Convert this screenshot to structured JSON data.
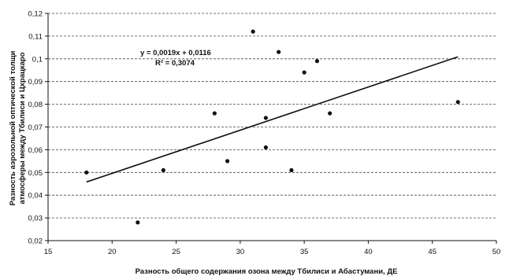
{
  "chart_data": {
    "type": "scatter",
    "xlabel": "Разность общего содержания озона между Тбилиси и Абастумани, ДЕ",
    "ylabel_lines": [
      "Разность аэрозольной оптической толщи",
      "атмосферы между Тбилиси и Цхрацкаро"
    ],
    "xlim": [
      15,
      50
    ],
    "ylim": [
      0.02,
      0.12
    ],
    "x_ticks": [
      15,
      20,
      25,
      30,
      35,
      40,
      45,
      50
    ],
    "x_tick_labels": [
      "15",
      "20",
      "25",
      "30",
      "35",
      "40",
      "45",
      "50"
    ],
    "y_ticks": [
      0.02,
      0.03,
      0.04,
      0.05,
      0.06,
      0.07,
      0.08,
      0.09,
      0.1,
      0.11,
      0.12
    ],
    "y_tick_labels": [
      "0,02",
      "0,03",
      "0,04",
      "0,05",
      "0,06",
      "0,07",
      "0,08",
      "0,09",
      "0,1",
      "0,11",
      "0,12"
    ],
    "grid": true,
    "points": [
      {
        "x": 18,
        "y": 0.05
      },
      {
        "x": 22,
        "y": 0.028
      },
      {
        "x": 24,
        "y": 0.051
      },
      {
        "x": 28,
        "y": 0.076
      },
      {
        "x": 29,
        "y": 0.055
      },
      {
        "x": 31,
        "y": 0.112
      },
      {
        "x": 32,
        "y": 0.074
      },
      {
        "x": 32,
        "y": 0.061
      },
      {
        "x": 33,
        "y": 0.103
      },
      {
        "x": 34,
        "y": 0.051
      },
      {
        "x": 35,
        "y": 0.094
      },
      {
        "x": 36,
        "y": 0.099
      },
      {
        "x": 37,
        "y": 0.076
      },
      {
        "x": 47,
        "y": 0.081
      }
    ],
    "trendline": {
      "slope": 0.0019,
      "intercept": 0.0116,
      "x_start": 18,
      "x_end": 47
    },
    "equation_text": "y = 0,0019x + 0,0116",
    "r2_text": "R² = 0,3074"
  }
}
